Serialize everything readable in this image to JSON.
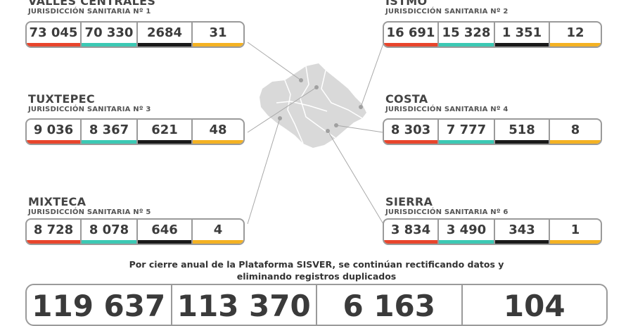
{
  "colors": {
    "confirmed": "#e8452c",
    "recovered": "#3cc9b4",
    "deaths": "#1a1a1a",
    "active": "#f4b223",
    "map_fill": "#d9d9d9",
    "map_line": "#ffffff",
    "connector": "#a0a0a0"
  },
  "regions": [
    {
      "name": "VALLES CENTRALES",
      "jurisdiction": "JURISDICCIÓN SANITARIA Nº 1",
      "values": [
        "73 045",
        "70 330",
        "2684",
        "31"
      ]
    },
    {
      "name": "ISTMO",
      "jurisdiction": "JURISDICCIÓN SANITARIA Nº 2",
      "values": [
        "16 691",
        "15 328",
        "1 351",
        "12"
      ]
    },
    {
      "name": "TUXTEPEC",
      "jurisdiction": "JURISDICCIÓN SANITARIA Nº 3",
      "values": [
        "9 036",
        "8 367",
        "621",
        "48"
      ]
    },
    {
      "name": "COSTA",
      "jurisdiction": "JURISDICCIÓN SANITARIA Nº 4",
      "values": [
        "8 303",
        "7 777",
        "518",
        "8"
      ]
    },
    {
      "name": "MIXTECA",
      "jurisdiction": "JURISDICCIÓN SANITARIA Nº 5",
      "values": [
        "8 728",
        "8 078",
        "646",
        "4"
      ]
    },
    {
      "name": "SIERRA",
      "jurisdiction": "JURISDICCIÓN SANITARIA Nº 6",
      "values": [
        "3 834",
        "3 490",
        "343",
        "1"
      ]
    }
  ],
  "notice": {
    "line1": "Por cierre anual de la Plataforma SISVER, se continúan rectificando datos y",
    "line2": "eliminando registros duplicados"
  },
  "totals": [
    "119 637",
    "113 370",
    "6 163",
    "104"
  ]
}
